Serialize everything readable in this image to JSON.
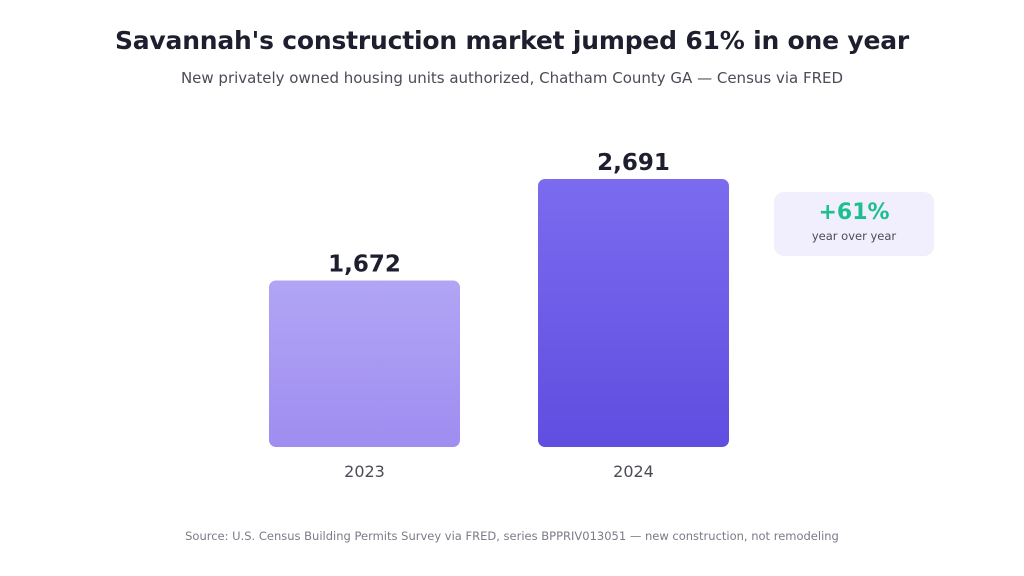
{
  "header": {
    "title": "Savannah's construction market jumped 61% in one year",
    "subtitle": "New privately owned housing units authorized, Chatham County GA — Census via FRED"
  },
  "chart_data": {
    "type": "bar",
    "categories": [
      "2023",
      "2024"
    ],
    "values": [
      1672,
      2691
    ],
    "value_labels": [
      "1,672",
      "2,691"
    ],
    "bar_colors": [
      [
        "#b1a5f5",
        "#9f8df0"
      ],
      [
        "#7b6bef",
        "#5f4ee0"
      ]
    ],
    "grid": false,
    "title": "",
    "xlabel": "",
    "ylabel": ""
  },
  "badge": {
    "value": "+61%",
    "label": "year over year",
    "value_color": "#1dbf8f",
    "background": "#f1effd"
  },
  "footer": {
    "source": "Source: U.S. Census Building Permits Survey via FRED, series BPPRIV013051 — new construction, not remodeling"
  }
}
